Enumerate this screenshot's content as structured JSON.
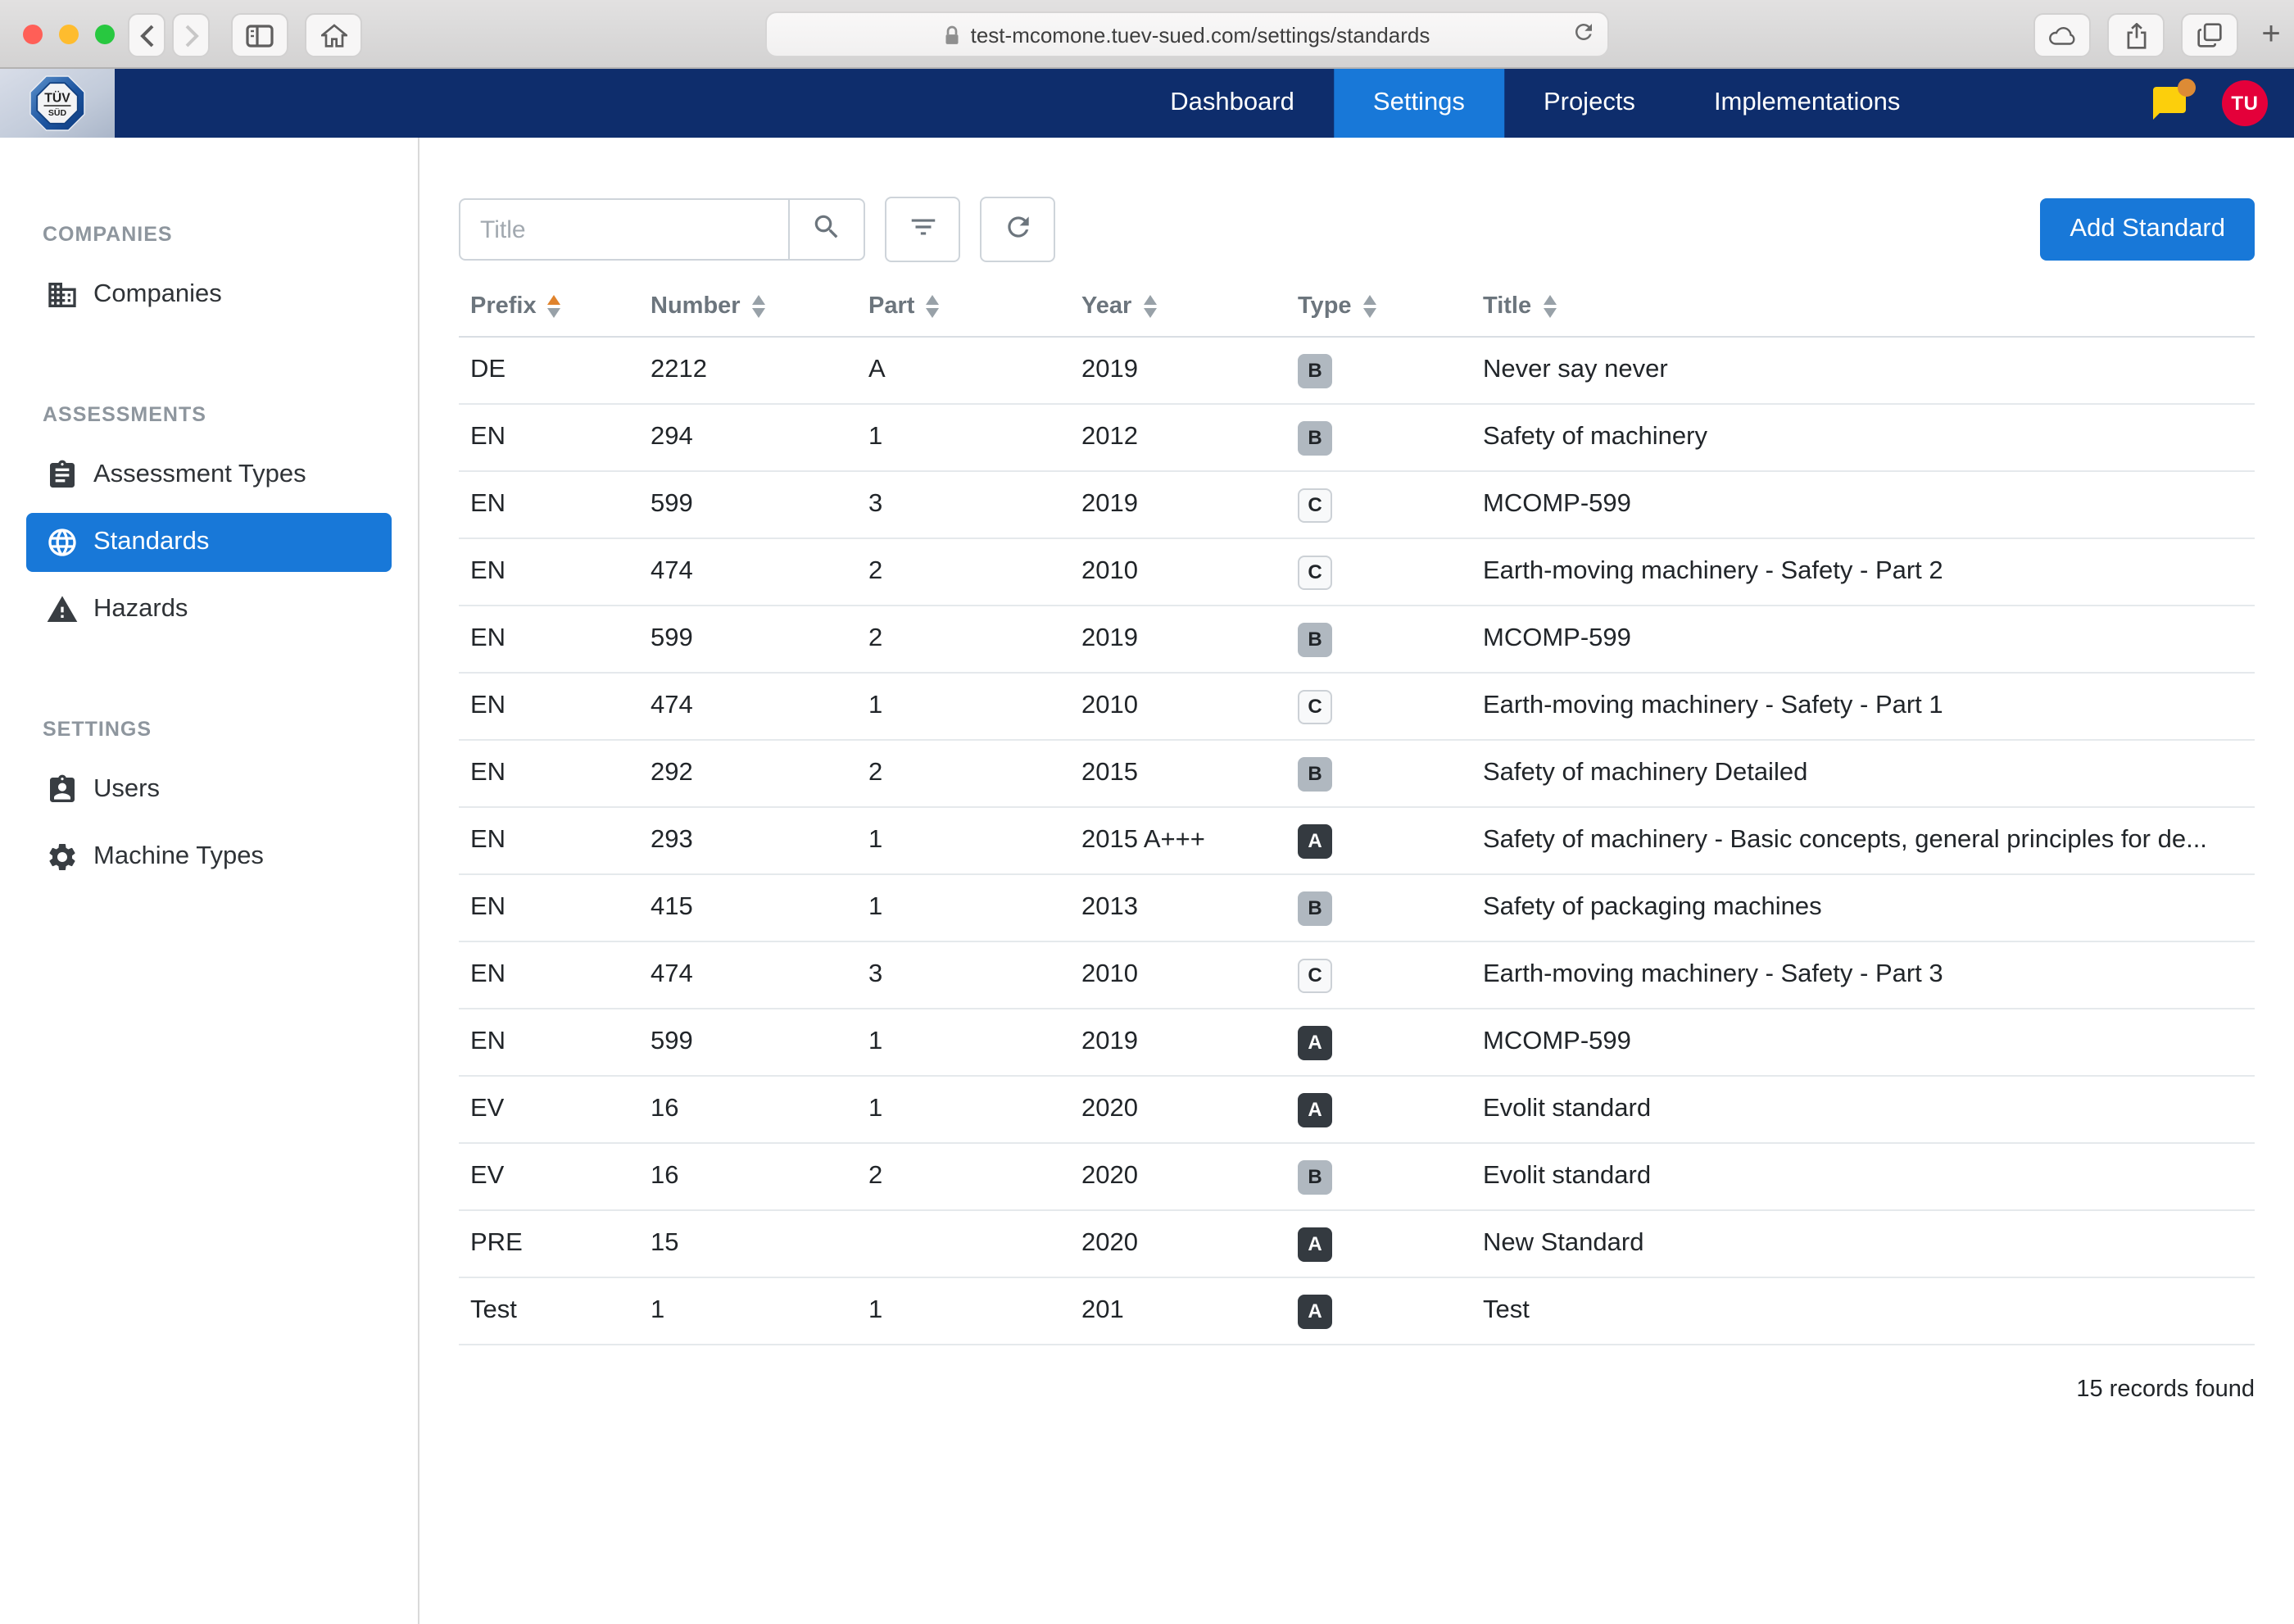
{
  "browser": {
    "url": "test-mcomone.tuev-sued.com/settings/standards",
    "traffic_light_colors": {
      "close": "#ff5f57",
      "minimize": "#febc2e",
      "zoom": "#28c840"
    }
  },
  "navbar": {
    "brand": "TÜV SÜD",
    "tabs": [
      {
        "label": "Dashboard",
        "active": false
      },
      {
        "label": "Settings",
        "active": true
      },
      {
        "label": "Projects",
        "active": false
      },
      {
        "label": "Implementations",
        "active": false
      }
    ],
    "avatar_initials": "TU",
    "colors": {
      "bar": "#0e2d6c",
      "active_tab": "#1878d8",
      "avatar": "#e4003a",
      "chat": "#fccf0c",
      "chat_badge": "#dd8b35"
    }
  },
  "sidebar": {
    "active_color": "#1878d8",
    "sections": [
      {
        "title": "COMPANIES",
        "items": [
          {
            "label": "Companies",
            "icon": "building-icon",
            "active": false
          }
        ]
      },
      {
        "title": "ASSESSMENTS",
        "items": [
          {
            "label": "Assessment Types",
            "icon": "clipboard-icon",
            "active": false
          },
          {
            "label": "Standards",
            "icon": "globe-icon",
            "active": true
          },
          {
            "label": "Hazards",
            "icon": "warning-icon",
            "active": false
          }
        ]
      },
      {
        "title": "SETTINGS",
        "items": [
          {
            "label": "Users",
            "icon": "user-badge-icon",
            "active": false
          },
          {
            "label": "Machine Types",
            "icon": "gear-icon",
            "active": false
          }
        ]
      }
    ]
  },
  "toolbar": {
    "search_placeholder": "Title",
    "add_button_label": "Add Standard",
    "add_button_color": "#1878d8"
  },
  "table": {
    "columns": [
      {
        "label": "Prefix",
        "key": "prefix",
        "sorted": "asc"
      },
      {
        "label": "Number",
        "key": "number",
        "sorted": null
      },
      {
        "label": "Part",
        "key": "part",
        "sorted": null
      },
      {
        "label": "Year",
        "key": "year",
        "sorted": null
      },
      {
        "label": "Type",
        "key": "type",
        "sorted": null
      },
      {
        "label": "Title",
        "key": "title",
        "sorted": null
      }
    ],
    "sort_active_color": "#e0832c",
    "badge_colors": {
      "A": {
        "bg": "#343a40",
        "text": "#ffffff",
        "border": "#343a40"
      },
      "B": {
        "bg": "#b0b8c0",
        "text": "#212529",
        "border": "#b0b8c0"
      },
      "C": {
        "bg": "#f8f9fa",
        "text": "#212529",
        "border": "#ccd1d6"
      }
    },
    "rows": [
      {
        "prefix": "DE",
        "number": "2212",
        "part": "A",
        "year": "2019",
        "type": "B",
        "title": "Never say never"
      },
      {
        "prefix": "EN",
        "number": "294",
        "part": "1",
        "year": "2012",
        "type": "B",
        "title": "Safety of machinery"
      },
      {
        "prefix": "EN",
        "number": "599",
        "part": "3",
        "year": "2019",
        "type": "C",
        "title": "MCOMP-599"
      },
      {
        "prefix": "EN",
        "number": "474",
        "part": "2",
        "year": "2010",
        "type": "C",
        "title": "Earth-moving machinery - Safety - Part 2"
      },
      {
        "prefix": "EN",
        "number": "599",
        "part": "2",
        "year": "2019",
        "type": "B",
        "title": "MCOMP-599"
      },
      {
        "prefix": "EN",
        "number": "474",
        "part": "1",
        "year": "2010",
        "type": "C",
        "title": "Earth-moving machinery - Safety - Part 1"
      },
      {
        "prefix": "EN",
        "number": "292",
        "part": "2",
        "year": "2015",
        "type": "B",
        "title": "Safety of machinery Detailed"
      },
      {
        "prefix": "EN",
        "number": "293",
        "part": "1",
        "year": "2015 A+++",
        "type": "A",
        "title": "Safety of machinery - Basic concepts, general principles for de..."
      },
      {
        "prefix": "EN",
        "number": "415",
        "part": "1",
        "year": "2013",
        "type": "B",
        "title": "Safety of packaging machines"
      },
      {
        "prefix": "EN",
        "number": "474",
        "part": "3",
        "year": "2010",
        "type": "C",
        "title": "Earth-moving machinery - Safety - Part 3"
      },
      {
        "prefix": "EN",
        "number": "599",
        "part": "1",
        "year": "2019",
        "type": "A",
        "title": "MCOMP-599"
      },
      {
        "prefix": "EV",
        "number": "16",
        "part": "1",
        "year": "2020",
        "type": "A",
        "title": "Evolit standard"
      },
      {
        "prefix": "EV",
        "number": "16",
        "part": "2",
        "year": "2020",
        "type": "B",
        "title": "Evolit standard"
      },
      {
        "prefix": "PRE",
        "number": "15",
        "part": "",
        "year": "2020",
        "type": "A",
        "title": "New Standard"
      },
      {
        "prefix": "Test",
        "number": "1",
        "part": "1",
        "year": "201",
        "type": "A",
        "title": "Test"
      }
    ],
    "footer": "15 records found"
  }
}
